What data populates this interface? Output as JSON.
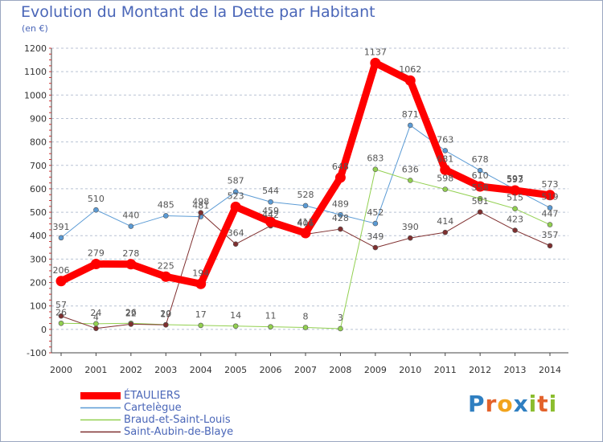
{
  "title": "Evolution du Montant de la Dette par Habitant",
  "subtitle": "(en €)",
  "logo": "Proxiti",
  "chart_data": {
    "type": "line",
    "title": "Evolution du Montant de la Dette par Habitant",
    "subtitle": "(en €)",
    "xlabel": "",
    "ylabel": "",
    "x": [
      2000,
      2001,
      2002,
      2003,
      2004,
      2005,
      2006,
      2007,
      2008,
      2009,
      2010,
      2011,
      2012,
      2013,
      2014
    ],
    "x_tick_labels": [
      "2000",
      "2001",
      "2002",
      "2003",
      "2004",
      "2005",
      "2006",
      "2007",
      "2008",
      "2009",
      "2010",
      "2011",
      "2012",
      "2013",
      "2014"
    ],
    "ylim": [
      -100,
      1200
    ],
    "y_ticks": [
      -100,
      0,
      100,
      200,
      300,
      400,
      500,
      600,
      700,
      800,
      900,
      1000,
      1100,
      1200
    ],
    "grid": "horizontal dashed",
    "legend": "bottom-left",
    "series": [
      {
        "name": "ÉTAULIERS",
        "color": "#ff0000",
        "width": 9,
        "values": [
          206,
          279,
          278,
          225,
          194,
          523,
          459,
          411,
          648,
          1137,
          1062,
          681,
          610,
          593,
          573
        ]
      },
      {
        "name": "Cartelègue",
        "color": "#5b9bd5",
        "width": 1,
        "values": [
          391,
          510,
          440,
          485,
          481,
          587,
          544,
          528,
          489,
          452,
          871,
          763,
          678,
          597,
          519
        ]
      },
      {
        "name": "Braud-et-Saint-Louis",
        "color": "#92d050",
        "width": 1,
        "values": [
          26,
          24,
          26,
          20,
          17,
          14,
          11,
          8,
          3,
          683,
          636,
          598,
          558,
          515,
          447
        ]
      },
      {
        "name": "Saint-Aubin-de-Blaye",
        "color": "#7f2f2f",
        "width": 1,
        "values": [
          57,
          4,
          22,
          19,
          498,
          364,
          442,
          406,
          428,
          349,
          390,
          414,
          501,
          423,
          357
        ]
      }
    ]
  }
}
